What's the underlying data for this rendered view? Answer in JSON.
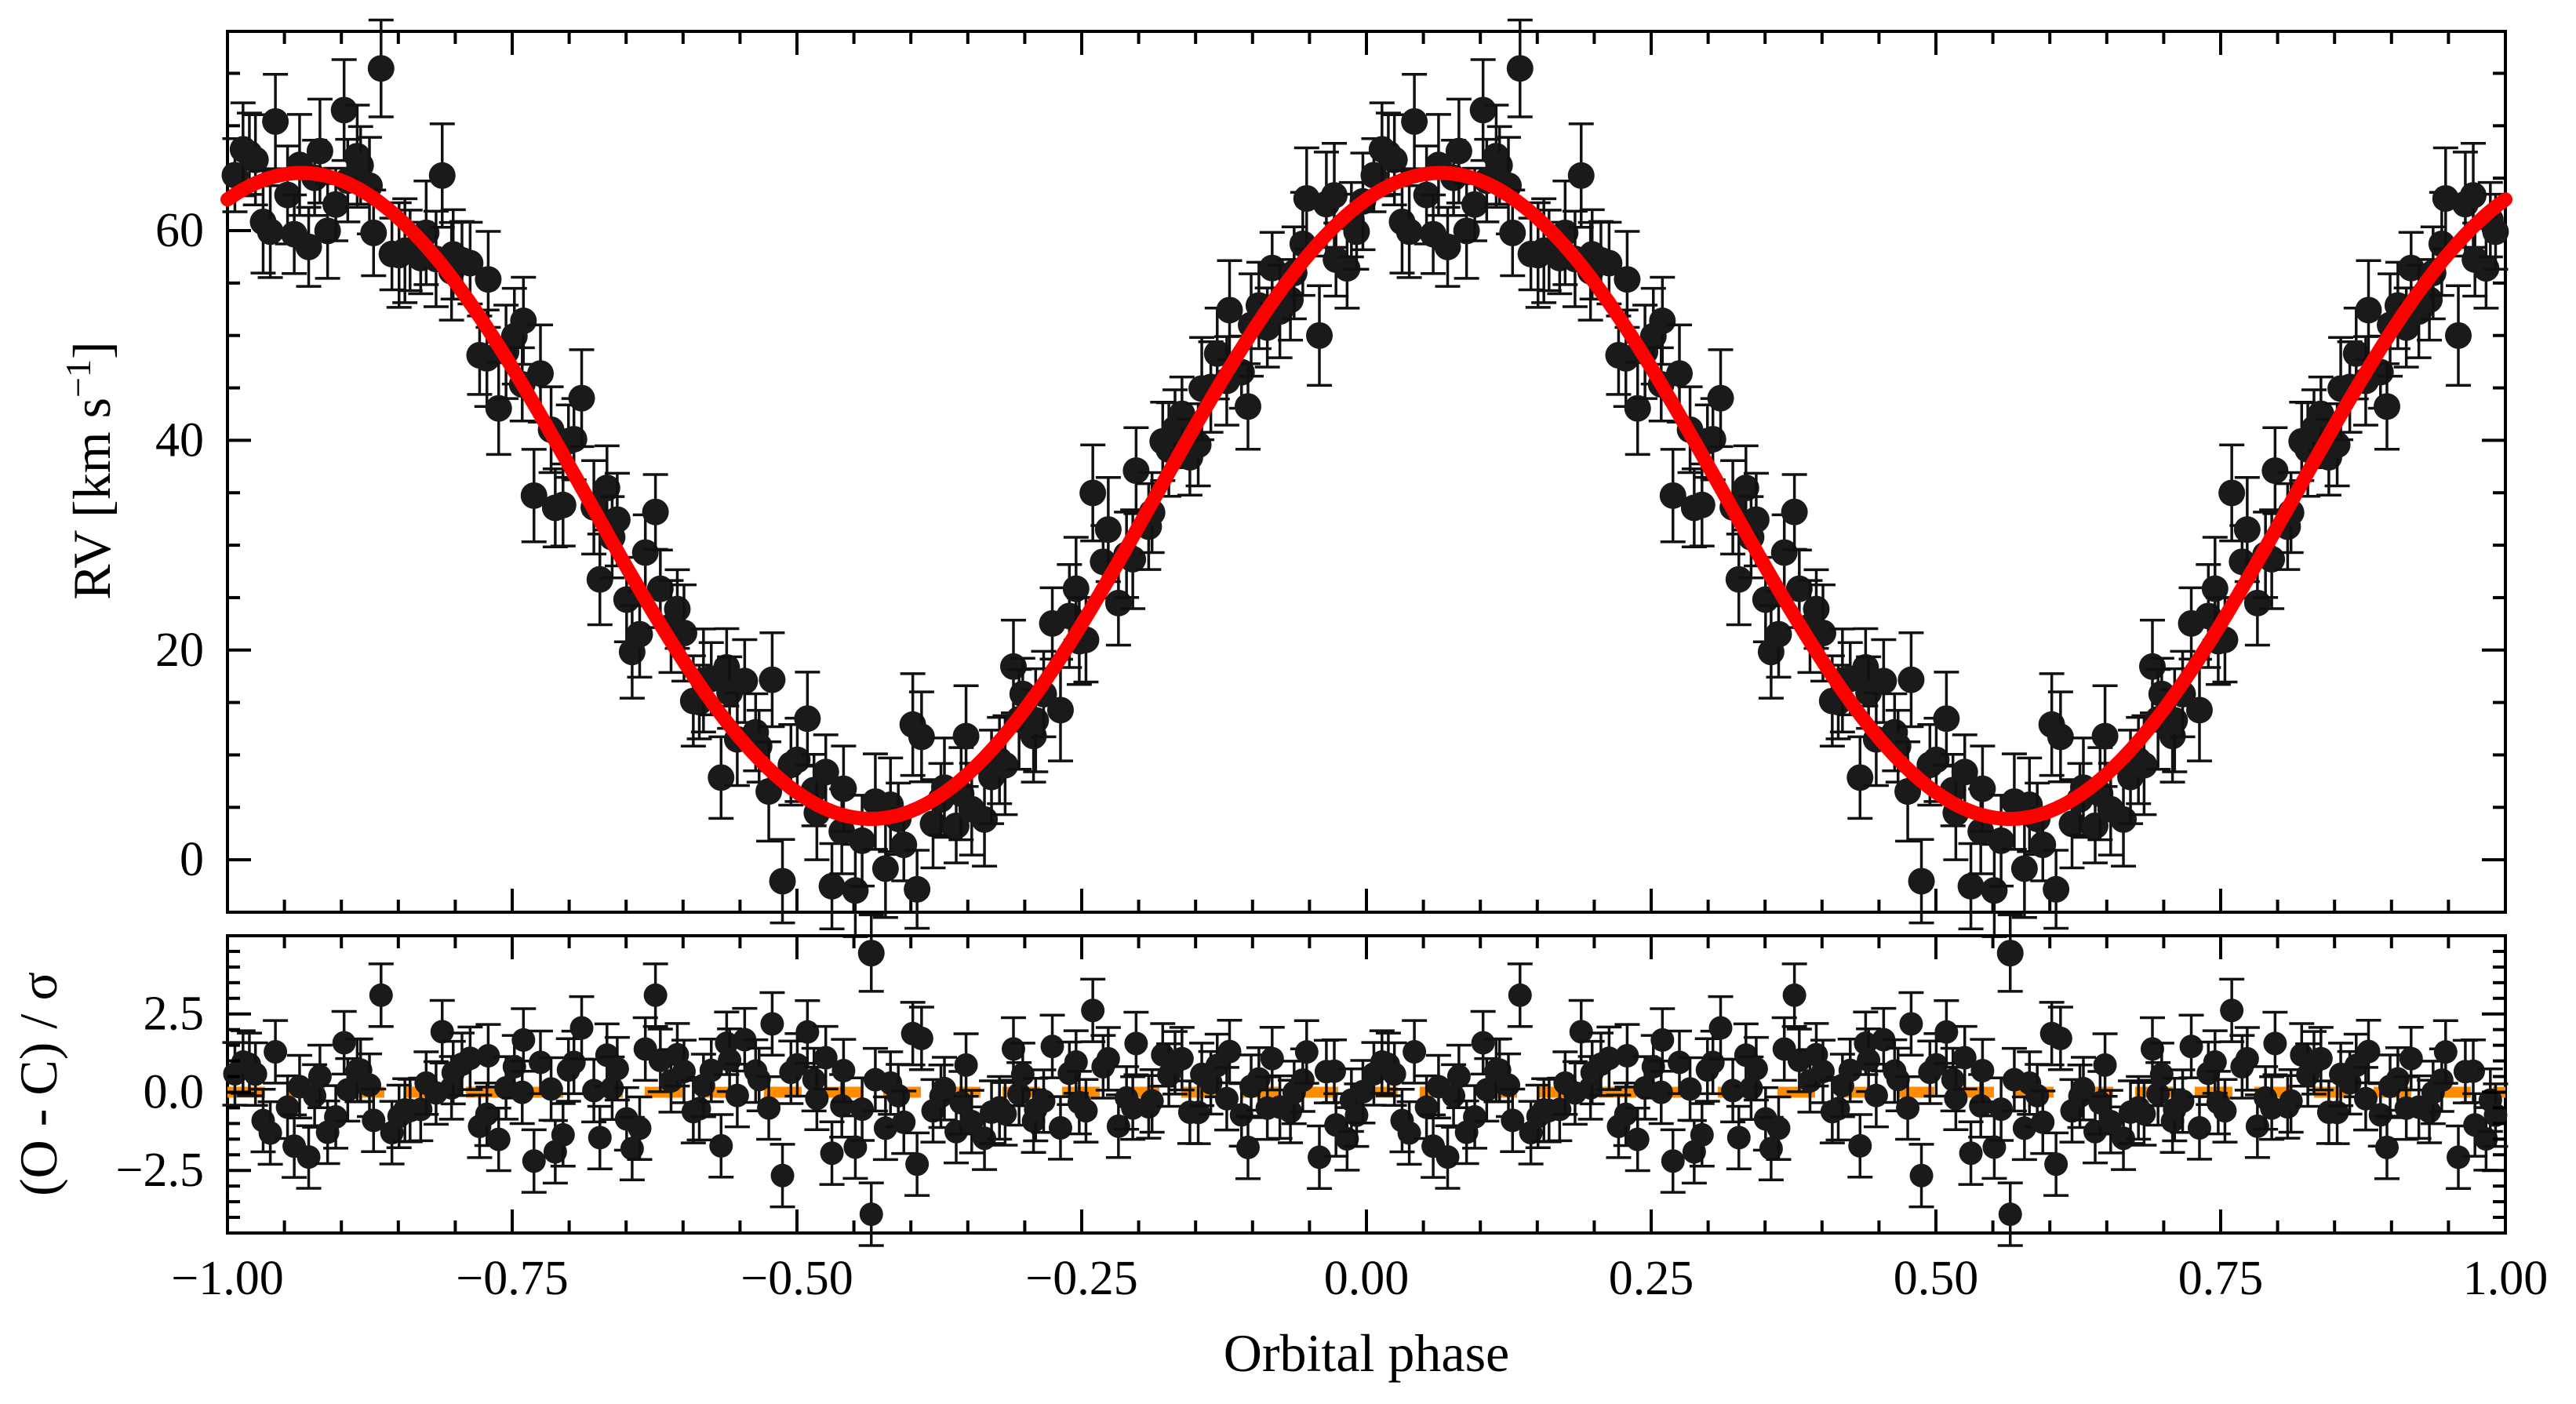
{
  "chart_data": [
    {
      "panel": "top",
      "type": "scatter",
      "ylabel": "RV [km s−1]",
      "ylabel_main": "RV [km s",
      "ylabel_sup": "−1",
      "ylabel_close": "]",
      "xlim": [
        -1.0,
        1.0
      ],
      "ylim": [
        -5,
        79
      ],
      "yticks": [
        0,
        20,
        40,
        60
      ],
      "ytick_labels": [
        "0",
        "20",
        "40",
        "60"
      ],
      "x_minor_step": 0.05,
      "y_minor_step": 5,
      "model": {
        "name": "RV model",
        "color": "#ff0000",
        "function": "sine",
        "offset": 34.7,
        "amplitude": 30.8,
        "phase_of_max": 0.065
      },
      "points": {
        "color": "#1a1a1a",
        "error_bar": 4,
        "count_per_cycle": 160,
        "scatter_seed": 7
      }
    },
    {
      "panel": "bottom",
      "type": "scatter",
      "ylabel": "(O - C) / σ",
      "xlabel": "Orbital phase",
      "xlim": [
        -1.0,
        1.0
      ],
      "ylim": [
        -4.5,
        5.0
      ],
      "xticks": [
        -1.0,
        -0.75,
        -0.5,
        -0.25,
        0.0,
        0.25,
        0.5,
        0.75,
        1.0
      ],
      "xtick_labels": [
        "−1.00",
        "−0.75",
        "−0.50",
        "−0.25",
        "0.00",
        "0.25",
        "0.50",
        "0.75",
        "1.00"
      ],
      "yticks": [
        -2.5,
        0.0,
        2.5
      ],
      "ytick_labels": [
        "−2.5",
        "0.0",
        "2.5"
      ],
      "y_minor_step": 0.5,
      "zero_line": {
        "value": 0.0,
        "color": "#ff8c00",
        "style": "dashed"
      },
      "points": {
        "color": "#1a1a1a",
        "error_bar": 1.0
      }
    }
  ]
}
